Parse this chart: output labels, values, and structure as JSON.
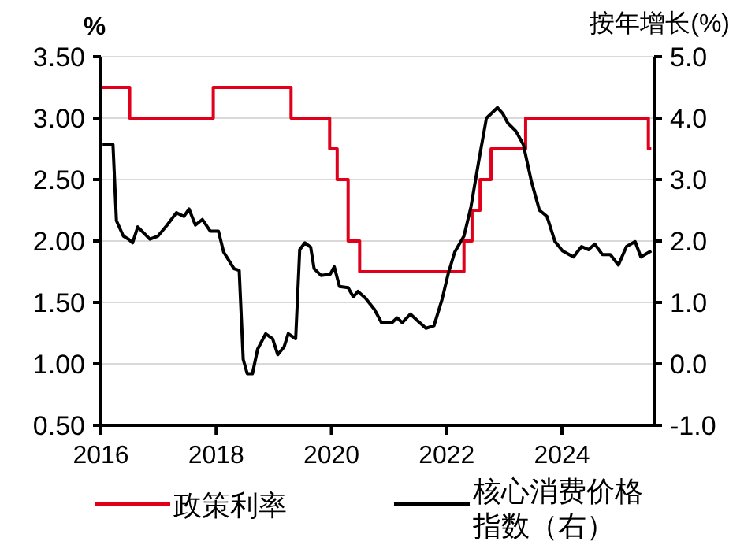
{
  "chart_data": {
    "type": "line",
    "ylabel": "%",
    "y2label": "按年增长(%)",
    "xlim": [
      2016,
      2025.6
    ],
    "xticks": [
      2016,
      2018,
      2020,
      2022,
      2024
    ],
    "ylim": [
      0.5,
      3.5
    ],
    "yticks": [
      {
        "value": 0.5,
        "label": "0.50"
      },
      {
        "value": 1,
        "label": "1.00"
      },
      {
        "value": 1.5,
        "label": "1.50"
      },
      {
        "value": 2,
        "label": "2.00"
      },
      {
        "value": 2.5,
        "label": "2.50"
      },
      {
        "value": 3,
        "label": "3.00"
      },
      {
        "value": 3.5,
        "label": "3.50"
      }
    ],
    "y2lim": [
      -1,
      5
    ],
    "y2ticks": [
      {
        "value": -1,
        "label": "-1.0"
      },
      {
        "value": 0,
        "label": "0.0"
      },
      {
        "value": 1,
        "label": "1.0"
      },
      {
        "value": 2,
        "label": "2.0"
      },
      {
        "value": 3,
        "label": "3.0"
      },
      {
        "value": 4,
        "label": "4.0"
      },
      {
        "value": 5,
        "label": "5.0"
      }
    ],
    "grid": "y",
    "legend": "bottom",
    "series": [
      {
        "name": "政策利率",
        "type": "step",
        "color": "#e0001b",
        "x": [
          2016.0,
          2016.5,
          2017.95,
          2019.3,
          2019.97,
          2020.1,
          2020.29,
          2020.49,
          2022.3,
          2022.44,
          2022.58,
          2022.77,
          2023.37,
          2025.5,
          2025.55
        ],
        "values": [
          3.25,
          3.0,
          3.25,
          3.0,
          2.75,
          2.5,
          2.0,
          1.75,
          2.0,
          2.25,
          2.5,
          2.75,
          3.0,
          2.75,
          2.75
        ]
      },
      {
        "name": "核心消费价格指数（右）",
        "axis": "y2",
        "color": "#000000",
        "x": [
          2016.03,
          2016.21,
          2016.27,
          2016.39,
          2016.48,
          2016.55,
          2016.64,
          2016.85,
          2016.99,
          2017.15,
          2017.31,
          2017.44,
          2017.53,
          2017.64,
          2017.76,
          2017.9,
          2018.04,
          2018.13,
          2018.31,
          2018.4,
          2018.47,
          2018.54,
          2018.63,
          2018.72,
          2018.86,
          2018.98,
          2019.07,
          2019.18,
          2019.25,
          2019.38,
          2019.45,
          2019.54,
          2019.64,
          2019.7,
          2019.82,
          2019.98,
          2020.05,
          2020.14,
          2020.29,
          2020.38,
          2020.46,
          2020.59,
          2020.75,
          2020.87,
          2021.05,
          2021.14,
          2021.23,
          2021.37,
          2021.51,
          2021.64,
          2021.78,
          2021.92,
          2022.03,
          2022.14,
          2022.3,
          2022.42,
          2022.56,
          2022.69,
          2022.88,
          2022.97,
          2023.06,
          2023.2,
          2023.33,
          2023.47,
          2023.61,
          2023.74,
          2023.88,
          2024.01,
          2024.2,
          2024.34,
          2024.46,
          2024.57,
          2024.7,
          2024.84,
          2024.98,
          2025.12,
          2025.27,
          2025.37,
          2025.55
        ],
        "values": [
          3.57,
          3.57,
          2.33,
          2.08,
          2.03,
          1.97,
          2.23,
          2.03,
          2.08,
          2.26,
          2.46,
          2.4,
          2.52,
          2.26,
          2.35,
          2.16,
          2.16,
          1.82,
          1.55,
          1.52,
          0.07,
          -0.16,
          -0.16,
          0.24,
          0.49,
          0.41,
          0.15,
          0.28,
          0.49,
          0.41,
          1.86,
          1.97,
          1.9,
          1.55,
          1.44,
          1.46,
          1.58,
          1.26,
          1.24,
          1.09,
          1.18,
          1.07,
          0.88,
          0.67,
          0.67,
          0.75,
          0.67,
          0.81,
          0.69,
          0.58,
          0.62,
          1.05,
          1.48,
          1.82,
          2.08,
          2.55,
          3.32,
          4.0,
          4.17,
          4.08,
          3.92,
          3.79,
          3.57,
          2.97,
          2.5,
          2.4,
          1.99,
          1.84,
          1.74,
          1.91,
          1.86,
          1.95,
          1.78,
          1.78,
          1.61,
          1.91,
          1.99,
          1.74,
          1.84
        ]
      }
    ]
  }
}
